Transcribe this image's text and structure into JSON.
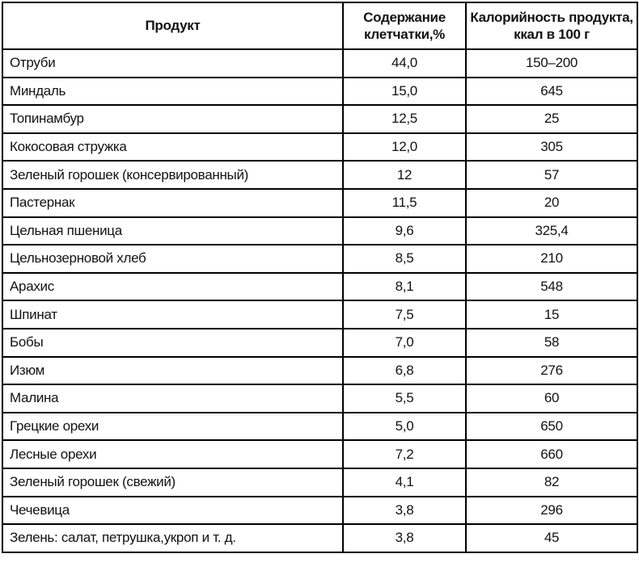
{
  "table": {
    "title_semantic": "Содержание клетчатки и калорийность продуктов",
    "columns": [
      "Продукт",
      "Содержание\nклетчатки,%",
      "Калорийность продукта,\nккал в 100 г"
    ],
    "rows": [
      [
        "Отруби",
        "44,0",
        "150–200"
      ],
      [
        "Миндаль",
        "15,0",
        "645"
      ],
      [
        "Топинамбур",
        "12,5",
        "25"
      ],
      [
        "Кокосовая стружка",
        "12,0",
        "305"
      ],
      [
        "Зеленый горошек (консервированный)",
        "12",
        "57"
      ],
      [
        "Пастернак",
        "11,5",
        "20"
      ],
      [
        "Цельная пшеница",
        "9,6",
        "325,4"
      ],
      [
        "Цельнозерновой хлеб",
        "8,5",
        "210"
      ],
      [
        "Арахис",
        "8,1",
        "548"
      ],
      [
        "Шпинат",
        "7,5",
        "15"
      ],
      [
        "Бобы",
        "7,0",
        "58"
      ],
      [
        "Изюм",
        "6,8",
        "276"
      ],
      [
        "Малина",
        "5,5",
        "60"
      ],
      [
        "Грецкие орехи",
        "5,0",
        "650"
      ],
      [
        "Лесные орехи",
        "7,2",
        "660"
      ],
      [
        "Зеленый горошек (свежий)",
        "4,1",
        "82"
      ],
      [
        "Чечевица",
        "3,8",
        "296"
      ],
      [
        "Зелень: салат, петрушка,укроп и т. д.",
        "3,8",
        "45"
      ]
    ],
    "colors": {
      "border": "#000000",
      "text": "#121212",
      "background": "#ffffff"
    }
  }
}
